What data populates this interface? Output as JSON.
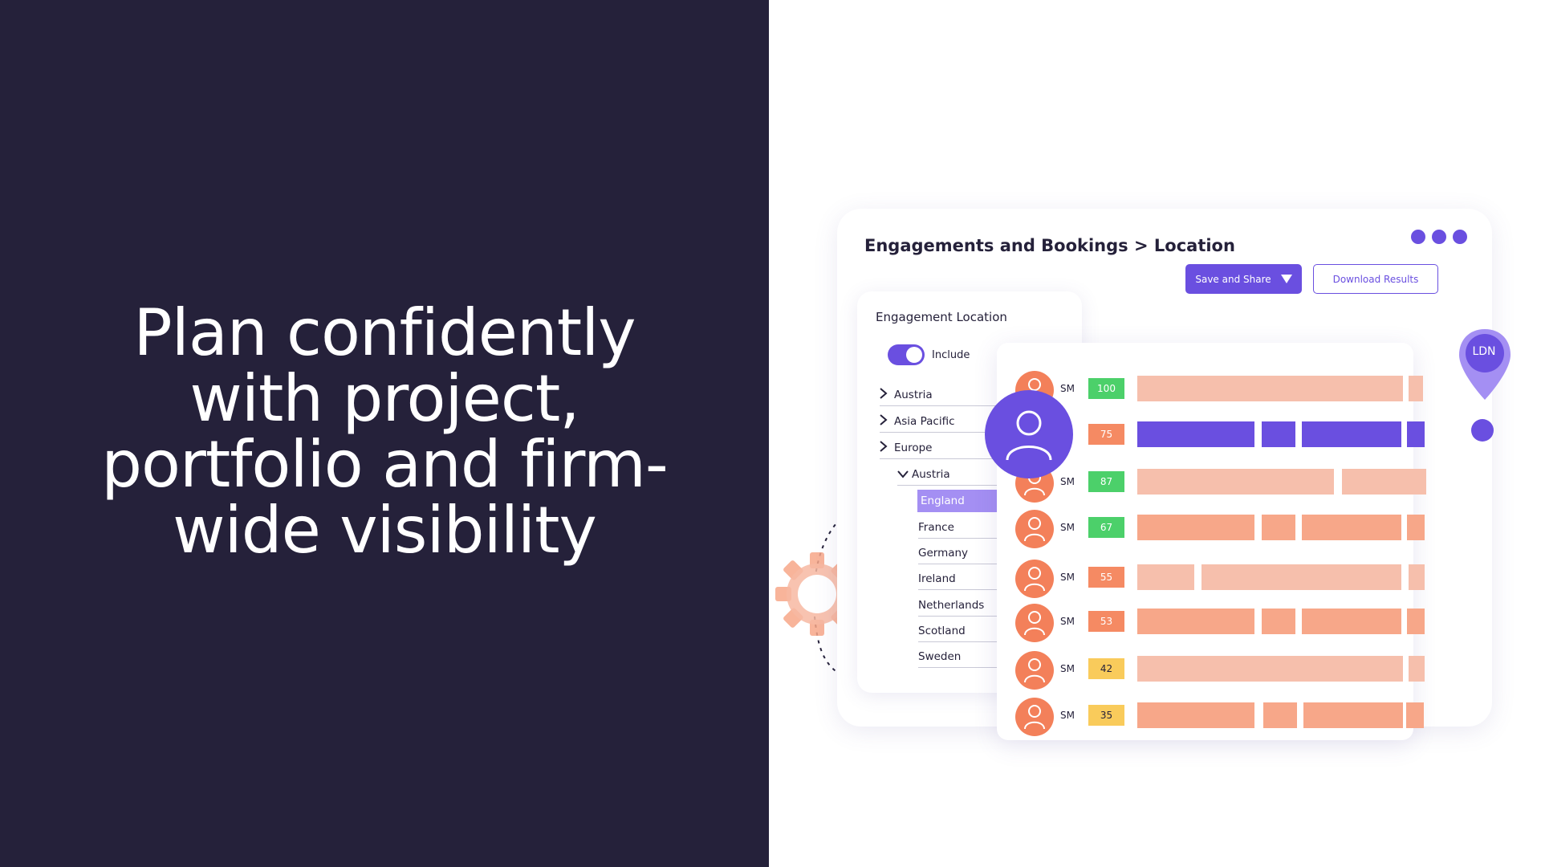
{
  "headline": "Plan confidently\nwith project,\nportfolio and firm-\nwide visibility",
  "card": {
    "title": "Engagements and Bookings > Location",
    "save_label": "Save and Share",
    "download_label": "Download Results"
  },
  "filter": {
    "title": "Engagement Location",
    "toggle_label": "Include",
    "toggle_on": true,
    "tree": [
      {
        "label": "Austria",
        "level": 0,
        "expander": ">"
      },
      {
        "label": "Asia Pacific",
        "level": 0,
        "expander": ">"
      },
      {
        "label": "Europe",
        "level": 0,
        "expander": ">"
      },
      {
        "label": "Austria",
        "level": 1,
        "expander": "v"
      },
      {
        "label": "England",
        "level": 2,
        "selected": true
      },
      {
        "label": "France",
        "level": 2
      },
      {
        "label": "Germany",
        "level": 2
      },
      {
        "label": "Ireland",
        "level": 2
      },
      {
        "label": "Netherlands",
        "level": 2
      },
      {
        "label": "Scotland",
        "level": 2
      },
      {
        "label": "Sweden",
        "level": 2
      }
    ]
  },
  "results": [
    {
      "initials": "SM",
      "score": "100",
      "score_color": "#4cd06a"
    },
    {
      "initials": "",
      "score": "75",
      "score_color": "#f58a63",
      "highlight": true
    },
    {
      "initials": "SM",
      "score": "87",
      "score_color": "#4cd06a"
    },
    {
      "initials": "SM",
      "score": "67",
      "score_color": "#4cd06a"
    },
    {
      "initials": "SM",
      "score": "55",
      "score_color": "#f58a63"
    },
    {
      "initials": "SM",
      "score": "53",
      "score_color": "#f58a63"
    },
    {
      "initials": "SM",
      "score": "42",
      "score_color": "#f9cb5b",
      "score_text_color": "#25213a"
    },
    {
      "initials": "SM",
      "score": "35",
      "score_color": "#f9cb5b",
      "score_text_color": "#25213a"
    }
  ],
  "map_pin": {
    "label": "LDN"
  },
  "colors": {
    "dark_bg": "#25213a",
    "accent": "#6a4fe0",
    "bar_light": "#f6bfac",
    "bar_mid": "#f7a789",
    "avatar": "#f3805a"
  },
  "icons": [
    "gear-icon",
    "user-icon",
    "map-pin-icon",
    "chevron-right-icon",
    "chevron-down-icon"
  ]
}
